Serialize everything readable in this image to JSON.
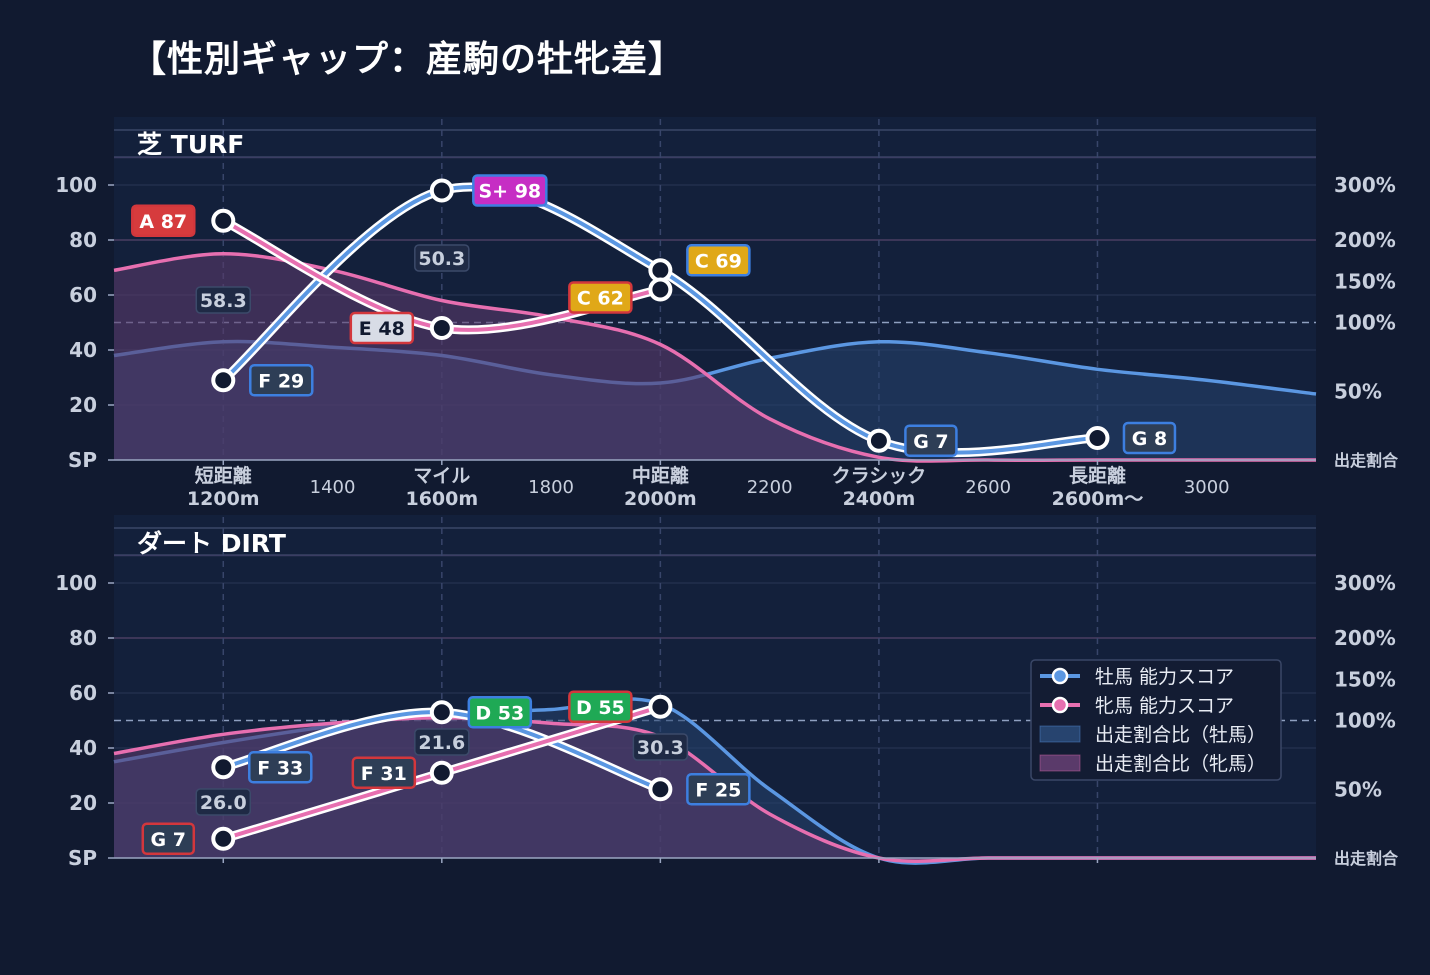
{
  "title": "【性別ギャップ：産駒の牡牝差】",
  "colors": {
    "male": "#5b97e2",
    "female": "#e76fb0",
    "male_fill": "#27446f",
    "female_fill": "#5a3a6a",
    "grade": {
      "S+": "#c62ec4",
      "A": "#d63b3d",
      "C": "#e0a818",
      "D": "#1fa955",
      "E": "#d8dce6",
      "F": "#2e3e56",
      "G": "#2e3e56"
    }
  },
  "chart_data": [
    {
      "type": "line",
      "title": "芝 TURF",
      "y_axis_left": {
        "range": [
          0,
          120
        ],
        "ticks": [
          "SP",
          "20",
          "40",
          "60",
          "80",
          "100"
        ]
      },
      "y_axis_right": {
        "ticks": [
          "出走割合",
          "50%",
          "100%",
          "150%",
          "200%",
          "300%"
        ]
      },
      "x_ticks": [
        {
          "pos": 1200,
          "label": "短距離",
          "sub": "1200m",
          "major": true
        },
        {
          "pos": 1400,
          "label": "1400",
          "sub": "",
          "major": false
        },
        {
          "pos": 1600,
          "label": "マイル",
          "sub": "1600m",
          "major": true
        },
        {
          "pos": 1800,
          "label": "1800",
          "sub": "",
          "major": false
        },
        {
          "pos": 2000,
          "label": "中距離",
          "sub": "2000m",
          "major": true
        },
        {
          "pos": 2200,
          "label": "2200",
          "sub": "",
          "major": false
        },
        {
          "pos": 2400,
          "label": "クラシック",
          "sub": "2400m",
          "major": true
        },
        {
          "pos": 2600,
          "label": "2600",
          "sub": "",
          "major": false
        },
        {
          "pos": 2800,
          "label": "長距離",
          "sub": "2600m〜",
          "major": true
        },
        {
          "pos": 3000,
          "label": "3000",
          "sub": "",
          "major": false
        }
      ],
      "x_range": [
        1000,
        3200
      ],
      "series": [
        {
          "name": "牡馬 能力スコア",
          "key": "male",
          "x": [
            1200,
            1600,
            2000,
            2400,
            2800
          ],
          "values": [
            29,
            98,
            69,
            7,
            8
          ],
          "labels": [
            {
              "grade": "F",
              "text": "F 29"
            },
            {
              "grade": "S+",
              "text": "S+ 98"
            },
            {
              "grade": "C",
              "text": "C 69"
            },
            {
              "grade": "G",
              "text": "G 7"
            },
            {
              "grade": "G",
              "text": "G 8"
            }
          ]
        },
        {
          "name": "牝馬 能力スコア",
          "key": "female",
          "x": [
            1200,
            1600,
            2000
          ],
          "values": [
            87,
            48,
            62
          ],
          "labels": [
            {
              "grade": "A",
              "text": "A 87"
            },
            {
              "grade": "E",
              "text": "E 48"
            },
            {
              "grade": "C",
              "text": "C 62"
            }
          ]
        }
      ],
      "areas": [
        {
          "name": "出走割合比（牡馬）",
          "key": "male",
          "x": [
            1000,
            1200,
            1400,
            1600,
            1800,
            2000,
            2200,
            2400,
            2600,
            2800,
            3000,
            3200
          ],
          "values": [
            38,
            43,
            41,
            38,
            31,
            28,
            37,
            43,
            39,
            33,
            29,
            24
          ]
        },
        {
          "name": "出走割合比（牝馬）",
          "key": "female",
          "x": [
            1000,
            1200,
            1400,
            1600,
            1800,
            2000,
            2200,
            2400,
            2600,
            2800,
            3000,
            3200
          ],
          "values": [
            69,
            75,
            69,
            58,
            52,
            42,
            15,
            1,
            0,
            0,
            0,
            0
          ]
        }
      ],
      "gaps": [
        {
          "x": 1200,
          "text": "58.3"
        },
        {
          "x": 1600,
          "text": "50.3"
        }
      ],
      "ref_line": 50
    },
    {
      "type": "line",
      "title": "ダート DIRT",
      "y_axis_left": {
        "range": [
          0,
          120
        ],
        "ticks": [
          "SP",
          "20",
          "40",
          "60",
          "80",
          "100"
        ]
      },
      "y_axis_right": {
        "ticks": [
          "出走割合",
          "50%",
          "100%",
          "150%",
          "200%",
          "300%"
        ]
      },
      "x_ticks": [],
      "x_range": [
        1000,
        3200
      ],
      "series": [
        {
          "name": "牡馬 能力スコア",
          "key": "male",
          "x": [
            1200,
            1600,
            2000
          ],
          "values": [
            33,
            53,
            25
          ],
          "labels": [
            {
              "grade": "F",
              "text": "F 33"
            },
            {
              "grade": "D",
              "text": "D 53"
            },
            {
              "grade": "F",
              "text": "F 25"
            }
          ]
        },
        {
          "name": "牝馬 能力スコア",
          "key": "female",
          "x": [
            1200,
            1600,
            2000
          ],
          "values": [
            7,
            31,
            55
          ],
          "labels": [
            {
              "grade": "G",
              "text": "G 7"
            },
            {
              "grade": "F",
              "text": "F 31"
            },
            {
              "grade": "D",
              "text": "D 55"
            }
          ]
        }
      ],
      "areas": [
        {
          "name": "出走割合比（牡馬）",
          "key": "male",
          "x": [
            1000,
            1200,
            1400,
            1600,
            1800,
            2000,
            2200,
            2400,
            2600,
            2800,
            3000,
            3200
          ],
          "values": [
            35,
            42,
            48,
            52,
            54,
            56,
            25,
            0,
            0,
            0,
            0,
            0
          ]
        },
        {
          "name": "出走割合比（牝馬）",
          "key": "female",
          "x": [
            1000,
            1200,
            1400,
            1600,
            1800,
            2000,
            2200,
            2400,
            2600,
            2800,
            3000,
            3200
          ],
          "values": [
            38,
            45,
            49,
            51,
            49,
            44,
            16,
            0,
            0,
            0,
            0,
            0
          ]
        }
      ],
      "gaps": [
        {
          "x": 1200,
          "text": "26.0"
        },
        {
          "x": 1600,
          "text": "21.6"
        },
        {
          "x": 2000,
          "text": "30.3"
        }
      ],
      "ref_line": 50
    }
  ],
  "legend": [
    {
      "type": "line",
      "key": "male",
      "label": "牡馬 能力スコア"
    },
    {
      "type": "line",
      "key": "female",
      "label": "牝馬 能力スコア"
    },
    {
      "type": "area",
      "key": "male",
      "label": "出走割合比（牡馬）"
    },
    {
      "type": "area",
      "key": "female",
      "label": "出走割合比（牝馬）"
    }
  ]
}
